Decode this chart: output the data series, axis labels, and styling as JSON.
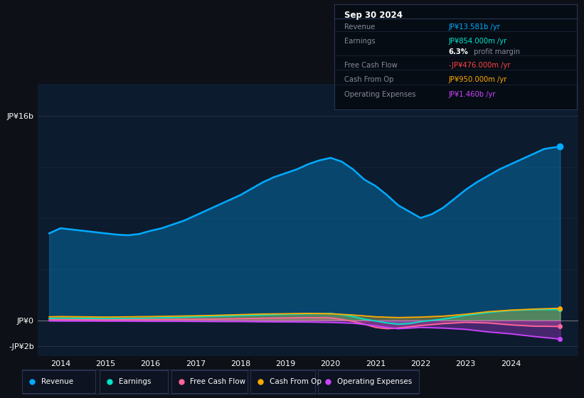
{
  "bg_color": "#0d1117",
  "plot_bg_color": "#0d1b2e",
  "title": "Sep 30 2024",
  "ytick_labels": [
    "JP¥16b",
    "JP¥0",
    "-JP¥2b"
  ],
  "ytick_values": [
    16000000000.0,
    0,
    -2000000000.0
  ],
  "xticks": [
    2014,
    2015,
    2016,
    2017,
    2018,
    2019,
    2020,
    2021,
    2022,
    2023,
    2024
  ],
  "ylim": [
    -2800000000.0,
    18500000000.0
  ],
  "xlim": [
    2013.5,
    2025.5
  ],
  "legend": [
    {
      "label": "Revenue",
      "color": "#00aaff"
    },
    {
      "label": "Earnings",
      "color": "#00e5cc"
    },
    {
      "label": "Free Cash Flow",
      "color": "#ff6699"
    },
    {
      "label": "Cash From Op",
      "color": "#ffaa00"
    },
    {
      "label": "Operating Expenses",
      "color": "#cc44ff"
    }
  ],
  "info_rows": [
    {
      "label": "Revenue",
      "value": "JP¥13.581b /yr",
      "value_color": "#00aaff"
    },
    {
      "label": "Earnings",
      "value": "JP¥854.000m /yr",
      "value_color": "#00e5cc"
    },
    {
      "label": "",
      "value": "",
      "value_color": "#aaaaaa"
    },
    {
      "label": "Free Cash Flow",
      "value": "-JP¥476.000m /yr",
      "value_color": "#ff4444"
    },
    {
      "label": "Cash From Op",
      "value": "JP¥950.000m /yr",
      "value_color": "#ffaa00"
    },
    {
      "label": "Operating Expenses",
      "value": "JP¥1.460b /yr",
      "value_color": "#cc44ff"
    }
  ],
  "revenue_x": [
    2013.75,
    2014.0,
    2014.25,
    2014.5,
    2014.75,
    2015.0,
    2015.25,
    2015.5,
    2015.75,
    2016.0,
    2016.25,
    2016.5,
    2016.75,
    2017.0,
    2017.25,
    2017.5,
    2017.75,
    2018.0,
    2018.25,
    2018.5,
    2018.75,
    2019.0,
    2019.25,
    2019.5,
    2019.75,
    2020.0,
    2020.25,
    2020.5,
    2020.75,
    2021.0,
    2021.25,
    2021.5,
    2021.75,
    2022.0,
    2022.25,
    2022.5,
    2022.75,
    2023.0,
    2023.25,
    2023.5,
    2023.75,
    2024.0,
    2024.25,
    2024.5,
    2024.75,
    2025.1
  ],
  "revenue_y": [
    6800000000.0,
    7200000000.0,
    7100000000.0,
    7000000000.0,
    6900000000.0,
    6800000000.0,
    6700000000.0,
    6650000000.0,
    6750000000.0,
    7000000000.0,
    7200000000.0,
    7500000000.0,
    7800000000.0,
    8200000000.0,
    8600000000.0,
    9000000000.0,
    9400000000.0,
    9800000000.0,
    10300000000.0,
    10800000000.0,
    11200000000.0,
    11500000000.0,
    11800000000.0,
    12200000000.0,
    12500000000.0,
    12700000000.0,
    12400000000.0,
    11800000000.0,
    11000000000.0,
    10500000000.0,
    9800000000.0,
    9000000000.0,
    8500000000.0,
    8000000000.0,
    8300000000.0,
    8800000000.0,
    9500000000.0,
    10200000000.0,
    10800000000.0,
    11300000000.0,
    11800000000.0,
    12200000000.0,
    12600000000.0,
    13000000000.0,
    13400000000.0,
    13581000000.0
  ],
  "revenue_color": "#00aaff",
  "earnings_x": [
    2013.75,
    2014.0,
    2014.5,
    2015.0,
    2015.5,
    2016.0,
    2016.5,
    2017.0,
    2017.5,
    2018.0,
    2018.5,
    2019.0,
    2019.5,
    2020.0,
    2020.25,
    2020.5,
    2020.75,
    2021.0,
    2021.25,
    2021.5,
    2021.75,
    2022.0,
    2022.5,
    2023.0,
    2023.5,
    2024.0,
    2024.5,
    2025.1
  ],
  "earnings_y": [
    150000000.0,
    180000000.0,
    160000000.0,
    140000000.0,
    150000000.0,
    180000000.0,
    220000000.0,
    280000000.0,
    330000000.0,
    380000000.0,
    430000000.0,
    480000000.0,
    520000000.0,
    540000000.0,
    450000000.0,
    300000000.0,
    100000000.0,
    -50000000.0,
    -200000000.0,
    -300000000.0,
    -250000000.0,
    -100000000.0,
    100000000.0,
    400000000.0,
    620000000.0,
    780000000.0,
    840000000.0,
    854000000.0
  ],
  "earnings_color": "#00e5cc",
  "fcf_x": [
    2013.75,
    2014.0,
    2014.5,
    2015.0,
    2015.5,
    2016.0,
    2016.5,
    2017.0,
    2017.5,
    2018.0,
    2018.5,
    2019.0,
    2019.5,
    2020.0,
    2020.25,
    2020.5,
    2020.75,
    2021.0,
    2021.25,
    2021.5,
    2022.0,
    2022.5,
    2023.0,
    2023.5,
    2024.0,
    2024.5,
    2025.1
  ],
  "fcf_y": [
    40000000.0,
    60000000.0,
    50000000.0,
    40000000.0,
    60000000.0,
    70000000.0,
    80000000.0,
    90000000.0,
    110000000.0,
    140000000.0,
    170000000.0,
    190000000.0,
    220000000.0,
    200000000.0,
    80000000.0,
    -80000000.0,
    -300000000.0,
    -550000000.0,
    -650000000.0,
    -600000000.0,
    -400000000.0,
    -250000000.0,
    -150000000.0,
    -200000000.0,
    -350000000.0,
    -450000000.0,
    -476000000.0
  ],
  "fcf_color": "#ff6699",
  "cfo_x": [
    2013.75,
    2014.0,
    2014.5,
    2015.0,
    2015.5,
    2016.0,
    2016.5,
    2017.0,
    2017.5,
    2018.0,
    2018.5,
    2019.0,
    2019.5,
    2020.0,
    2020.5,
    2021.0,
    2021.5,
    2022.0,
    2022.5,
    2023.0,
    2023.5,
    2024.0,
    2024.5,
    2025.1
  ],
  "cfo_y": [
    280000000.0,
    300000000.0,
    280000000.0,
    260000000.0,
    280000000.0,
    300000000.0,
    330000000.0,
    360000000.0,
    400000000.0,
    450000000.0,
    500000000.0,
    520000000.0,
    550000000.0,
    520000000.0,
    420000000.0,
    280000000.0,
    220000000.0,
    260000000.0,
    330000000.0,
    480000000.0,
    680000000.0,
    800000000.0,
    880000000.0,
    950000000.0
  ],
  "cfo_color": "#ffaa00",
  "opex_x": [
    2013.75,
    2014.0,
    2014.5,
    2015.0,
    2015.5,
    2016.0,
    2016.5,
    2017.0,
    2017.5,
    2018.0,
    2018.5,
    2019.0,
    2019.5,
    2020.0,
    2020.5,
    2021.0,
    2021.25,
    2021.5,
    2021.75,
    2022.0,
    2022.5,
    2023.0,
    2023.5,
    2024.0,
    2024.5,
    2025.1
  ],
  "opex_y": [
    -40000000.0,
    -50000000.0,
    -50000000.0,
    -60000000.0,
    -60000000.0,
    -70000000.0,
    -70000000.0,
    -80000000.0,
    -90000000.0,
    -90000000.0,
    -110000000.0,
    -120000000.0,
    -130000000.0,
    -160000000.0,
    -220000000.0,
    -420000000.0,
    -550000000.0,
    -650000000.0,
    -600000000.0,
    -550000000.0,
    -600000000.0,
    -700000000.0,
    -900000000.0,
    -1050000000.0,
    -1250000000.0,
    -1460000000.0
  ],
  "opex_color": "#cc44ff"
}
